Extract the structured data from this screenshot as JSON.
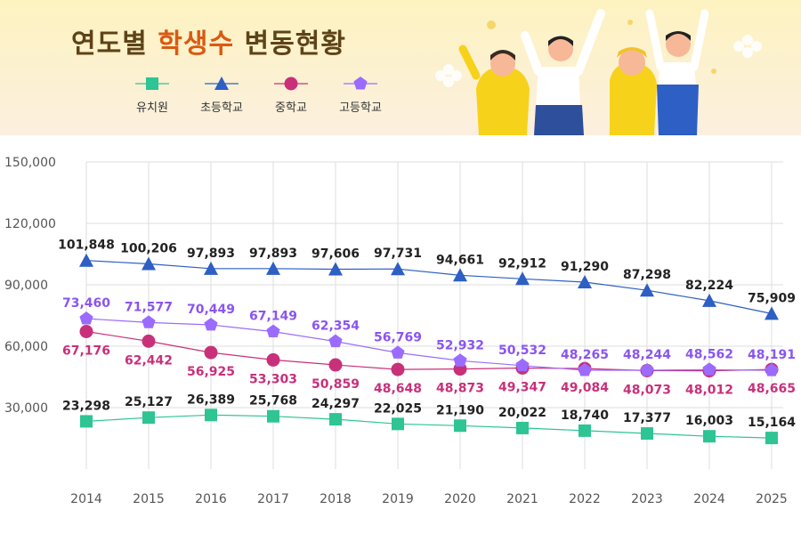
{
  "header": {
    "title_part1": "연도별",
    "title_highlight": "학생수",
    "title_part2": "변동현황"
  },
  "chart_data": {
    "type": "line",
    "title": "연도별 학생수 변동현황",
    "categories": [
      "2014",
      "2015",
      "2016",
      "2017",
      "2018",
      "2019",
      "2020",
      "2021",
      "2022",
      "2023",
      "2024",
      "2025"
    ],
    "ylim": [
      0,
      150000
    ],
    "yticks": [
      "30,000",
      "60,000",
      "90,000",
      "120,000",
      "150,000"
    ],
    "ytick_values": [
      30000,
      60000,
      90000,
      120000,
      150000
    ],
    "grid": true,
    "legend_position": "top-left",
    "series": [
      {
        "name": "유치원",
        "color": "#2ec493",
        "label_color": "#222222",
        "marker": "square",
        "label_pos": "above",
        "values": [
          23298,
          25127,
          26389,
          25768,
          24297,
          22025,
          21190,
          20022,
          18740,
          17377,
          16003,
          15164
        ]
      },
      {
        "name": "초등학교",
        "color": "#2d5fc4",
        "label_color": "#222222",
        "marker": "triangle",
        "label_pos": "above",
        "values": [
          101848,
          100206,
          97893,
          97893,
          97606,
          97731,
          94661,
          92912,
          91290,
          87298,
          82224,
          75909
        ]
      },
      {
        "name": "중학교",
        "color": "#c8307a",
        "label_color": "#c8307a",
        "marker": "circle",
        "label_pos": "below",
        "values": [
          67176,
          62442,
          56925,
          53303,
          50859,
          48648,
          48873,
          49347,
          49084,
          48073,
          48012,
          48665
        ]
      },
      {
        "name": "고등학교",
        "color": "#9b6bff",
        "label_color": "#8a55f0",
        "marker": "pentagon",
        "label_pos": "above",
        "values": [
          73460,
          71577,
          70449,
          67149,
          62354,
          56769,
          52932,
          50532,
          48265,
          48244,
          48562,
          48191
        ]
      }
    ]
  }
}
